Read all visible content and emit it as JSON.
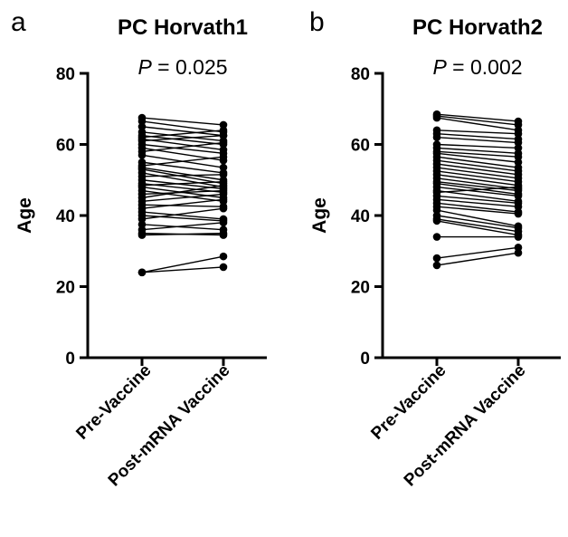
{
  "chart_data": [
    {
      "panel": "a",
      "type": "scatter",
      "title": "PC Horvath1",
      "annotation": {
        "label": "P",
        "text": " = 0.025"
      },
      "ylabel": "Age",
      "categories": [
        "Pre-Vaccine",
        "Post-mRNA Vaccine"
      ],
      "ylim": [
        0,
        80
      ],
      "yticks": [
        0,
        20,
        40,
        60,
        80
      ],
      "pairs": [
        [
          67.5,
          65.5
        ],
        [
          66.5,
          63.5
        ],
        [
          65.0,
          62.5
        ],
        [
          63.5,
          61.0
        ],
        [
          62.5,
          60.0
        ],
        [
          62.0,
          64.0
        ],
        [
          61.5,
          58.5
        ],
        [
          61.0,
          62.5
        ],
        [
          60.0,
          57.5
        ],
        [
          59.0,
          55.5
        ],
        [
          58.0,
          60.5
        ],
        [
          57.0,
          53.5
        ],
        [
          55.0,
          52.0
        ],
        [
          54.0,
          56.5
        ],
        [
          53.5,
          50.0
        ],
        [
          53.0,
          49.0
        ],
        [
          52.0,
          48.0
        ],
        [
          51.0,
          51.5
        ],
        [
          50.0,
          47.5
        ],
        [
          49.0,
          46.5
        ],
        [
          48.5,
          49.5
        ],
        [
          48.0,
          45.0
        ],
        [
          47.0,
          44.0
        ],
        [
          46.0,
          47.0
        ],
        [
          45.0,
          48.5
        ],
        [
          44.0,
          46.0
        ],
        [
          43.0,
          42.5
        ],
        [
          42.0,
          44.5
        ],
        [
          41.0,
          39.0
        ],
        [
          40.0,
          38.5
        ],
        [
          39.0,
          42.0
        ],
        [
          37.5,
          36.0
        ],
        [
          36.0,
          38.0
        ],
        [
          35.0,
          34.5
        ],
        [
          34.5,
          35.0
        ],
        [
          24.0,
          28.5
        ],
        [
          24.0,
          25.5
        ]
      ]
    },
    {
      "panel": "b",
      "type": "scatter",
      "title": "PC Horvath2",
      "annotation": {
        "label": "P",
        "text": " = 0.002"
      },
      "ylabel": "Age",
      "categories": [
        "Pre-Vaccine",
        "Post-mRNA Vaccine"
      ],
      "ylim": [
        0,
        80
      ],
      "yticks": [
        0,
        20,
        40,
        60,
        80
      ],
      "pairs": [
        [
          68.5,
          66.5
        ],
        [
          68.0,
          65.5
        ],
        [
          67.5,
          64.0
        ],
        [
          64.0,
          63.0
        ],
        [
          63.0,
          61.5
        ],
        [
          62.0,
          60.5
        ],
        [
          60.0,
          59.0
        ],
        [
          59.0,
          57.5
        ],
        [
          58.0,
          56.5
        ],
        [
          57.5,
          55.0
        ],
        [
          56.5,
          53.5
        ],
        [
          55.5,
          52.5
        ],
        [
          54.5,
          51.5
        ],
        [
          53.5,
          50.5
        ],
        [
          52.5,
          49.5
        ],
        [
          51.5,
          48.5
        ],
        [
          50.5,
          47.5
        ],
        [
          49.5,
          47.0
        ],
        [
          49.0,
          46.0
        ],
        [
          48.0,
          45.5
        ],
        [
          47.0,
          44.0
        ],
        [
          46.5,
          48.0
        ],
        [
          45.5,
          43.5
        ],
        [
          44.5,
          42.5
        ],
        [
          43.5,
          41.0
        ],
        [
          42.5,
          40.5
        ],
        [
          41.5,
          37.0
        ],
        [
          40.0,
          36.5
        ],
        [
          39.0,
          35.5
        ],
        [
          38.5,
          34.5
        ],
        [
          34.0,
          34.0
        ],
        [
          28.0,
          31.0
        ],
        [
          26.0,
          29.5
        ]
      ]
    }
  ]
}
